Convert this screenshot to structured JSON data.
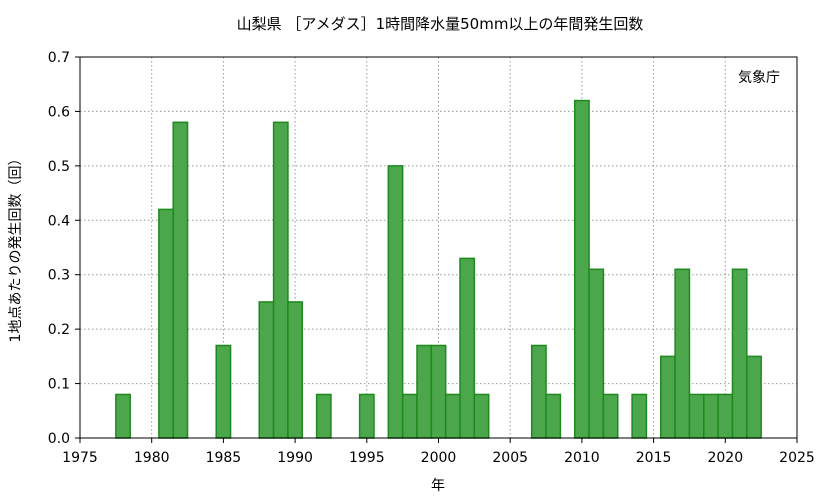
{
  "chart_data": {
    "type": "bar",
    "title": "山梨県 ［アメダス］1時間降水量50mm以上の年間発生回数",
    "xlabel": "年",
    "ylabel": "1地点あたりの発生回数（回）",
    "credit": "気象庁",
    "xlim": [
      1975,
      2025
    ],
    "ylim": [
      0,
      0.7
    ],
    "xticks": [
      1975,
      1980,
      1985,
      1990,
      1995,
      2000,
      2005,
      2010,
      2015,
      2020,
      2025
    ],
    "yticks": [
      "0.0",
      "0.1",
      "0.2",
      "0.3",
      "0.4",
      "0.5",
      "0.6",
      "0.7"
    ],
    "grid": true,
    "series": [
      {
        "x": [
          1976,
          1977,
          1978,
          1979,
          1980,
          1981,
          1982,
          1983,
          1984,
          1985,
          1986,
          1987,
          1988,
          1989,
          1990,
          1991,
          1992,
          1993,
          1994,
          1995,
          1996,
          1997,
          1998,
          1999,
          2000,
          2001,
          2002,
          2003,
          2004,
          2005,
          2006,
          2007,
          2008,
          2009,
          2010,
          2011,
          2012,
          2013,
          2014,
          2015,
          2016,
          2017,
          2018,
          2019,
          2020,
          2021,
          2022,
          2023
        ],
        "values": [
          0,
          0,
          0.08,
          0,
          0,
          0.42,
          0.58,
          0,
          0,
          0.17,
          0,
          0,
          0.25,
          0.58,
          0.25,
          0,
          0.08,
          0,
          0,
          0.08,
          0,
          0.5,
          0.08,
          0.17,
          0.17,
          0.08,
          0.33,
          0.08,
          0,
          0,
          0,
          0.17,
          0.08,
          0,
          0.62,
          0.31,
          0.08,
          0,
          0.08,
          0,
          0.15,
          0.31,
          0.08,
          0.08,
          0.08,
          0.31,
          0.15,
          0
        ],
        "color": "#4ca64c",
        "edge_color": "#1e8a1e"
      }
    ]
  }
}
